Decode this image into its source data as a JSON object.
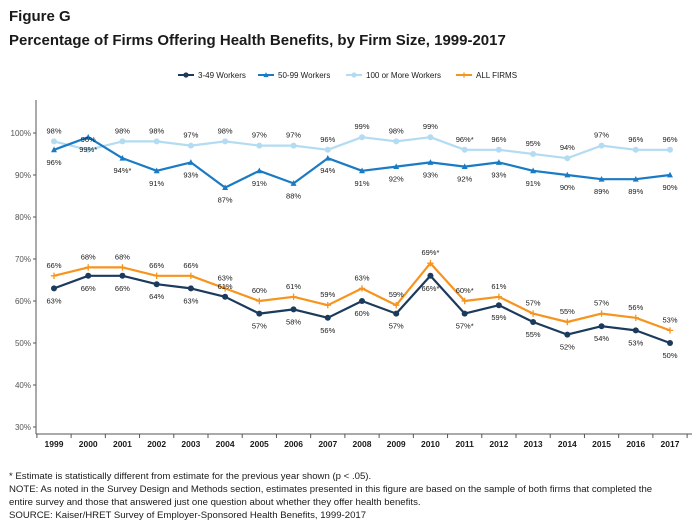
{
  "figure_label": "Figure G",
  "title": "Percentage of Firms Offering Health Benefits, by Firm Size, 1999-2017",
  "footnotes": [
    "* Estimate is statistically different from estimate for the previous year shown (p < .05).",
    "NOTE: As noted in the Survey Design and Methods section, estimates presented in this figure are based on the sample of both firms that completed the",
    "entire survey and those that answered just one question about whether they offer health benefits.",
    "SOURCE: Kaiser/HRET Survey of Employer-Sponsored Health Benefits, 1999-2017"
  ],
  "chart_data": {
    "type": "line",
    "x": [
      1999,
      2000,
      2001,
      2002,
      2003,
      2004,
      2005,
      2006,
      2007,
      2008,
      2009,
      2010,
      2011,
      2012,
      2013,
      2014,
      2015,
      2016,
      2017
    ],
    "ylim": [
      30,
      100
    ],
    "yticks": [
      30,
      40,
      50,
      60,
      70,
      80,
      90,
      100
    ],
    "ytick_labels": [
      "30%",
      "40%",
      "50%",
      "60%",
      "70%",
      "80%",
      "90%",
      "100%"
    ],
    "grid": false,
    "legend_position": "top-center",
    "series": [
      {
        "name": "3-49 Workers",
        "color": "#1b3a5c",
        "marker": "circle",
        "values": [
          63,
          66,
          66,
          64,
          63,
          61,
          57,
          58,
          56,
          60,
          57,
          66,
          57,
          59,
          55,
          52,
          54,
          53,
          50
        ],
        "labels": [
          "63%",
          "66%",
          "66%",
          "64%",
          "63%",
          "61%",
          "57%",
          "58%",
          "56%",
          "60%",
          "57%",
          "66%*",
          "57%*",
          "59%",
          "55%",
          "52%",
          "54%",
          "53%",
          "50%"
        ],
        "label_pos": [
          "below",
          "below",
          "below",
          "below",
          "below",
          "above",
          "below",
          "below",
          "below",
          "below",
          "below",
          "below",
          "below",
          "below",
          "below",
          "below",
          "below",
          "below",
          "below"
        ]
      },
      {
        "name": "50-99 Workers",
        "color": "#1a7bc4",
        "marker": "triangle",
        "values": [
          96,
          99,
          94,
          91,
          93,
          87,
          91,
          88,
          94,
          91,
          92,
          93,
          92,
          93,
          91,
          90,
          89,
          89,
          90
        ],
        "labels": [
          "96%",
          "99%*",
          "94%*",
          "91%",
          "93%",
          "87%",
          "91%",
          "88%",
          "94%",
          "91%",
          "92%",
          "93%",
          "92%",
          "93%",
          "91%",
          "90%",
          "89%",
          "89%",
          "90%"
        ],
        "label_pos": [
          "below",
          "below",
          "below",
          "below",
          "below",
          "below",
          "below",
          "below",
          "below",
          "below",
          "below",
          "below",
          "below",
          "below",
          "below",
          "below",
          "below",
          "below",
          "below"
        ]
      },
      {
        "name": "100 or More Workers",
        "color": "#b3dcf2",
        "marker": "circle",
        "values": [
          98,
          96,
          98,
          98,
          97,
          98,
          97,
          97,
          96,
          99,
          98,
          99,
          96,
          96,
          95,
          94,
          97,
          96,
          96
        ],
        "labels": [
          "98%",
          "96%",
          "98%",
          "98%",
          "97%",
          "98%",
          "97%",
          "97%",
          "96%",
          "99%",
          "98%",
          "99%",
          "96%*",
          "96%",
          "95%",
          "94%",
          "97%",
          "96%",
          "96%"
        ],
        "label_pos": [
          "above",
          "above",
          "above",
          "above",
          "above",
          "above",
          "above",
          "above",
          "above",
          "above",
          "above",
          "above",
          "above",
          "above",
          "above",
          "above",
          "above",
          "above",
          "above"
        ]
      },
      {
        "name": "ALL FIRMS",
        "color": "#f7941d",
        "marker": "plus",
        "values": [
          66,
          68,
          68,
          66,
          66,
          63,
          60,
          61,
          59,
          63,
          59,
          69,
          60,
          61,
          57,
          55,
          57,
          56,
          53
        ],
        "labels": [
          "66%",
          "68%",
          "68%",
          "66%",
          "66%",
          "63%",
          "60%",
          "61%",
          "59%",
          "63%",
          "59%",
          "69%*",
          "60%*",
          "61%",
          "57%",
          "55%",
          "57%",
          "56%",
          "53%"
        ],
        "label_pos": [
          "above",
          "above",
          "above",
          "above",
          "above",
          "above",
          "above",
          "above",
          "above",
          "above",
          "above",
          "above",
          "above",
          "above",
          "above",
          "above",
          "above",
          "above",
          "above"
        ]
      }
    ]
  }
}
